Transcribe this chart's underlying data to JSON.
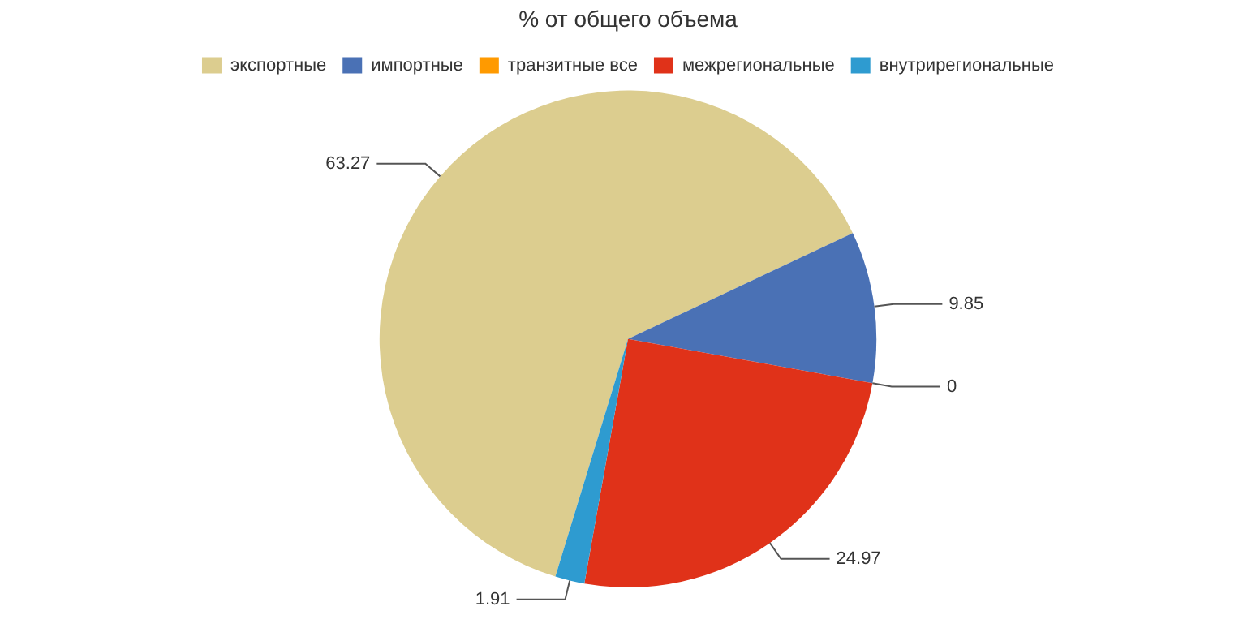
{
  "chart_data": {
    "type": "pie",
    "title": "% от общего объема",
    "categories": [
      "экспортные",
      "импортные",
      "транзитные все",
      "межрегиональные",
      "внутрирегиональные"
    ],
    "values": [
      63.27,
      9.85,
      0,
      24.97,
      1.91
    ],
    "colors": [
      "#dccd8f",
      "#4a71b5",
      "#ff9a00",
      "#e03219",
      "#2e9bd0"
    ],
    "value_labels": [
      "63.27",
      "9.85",
      "0",
      "24.97",
      "1.91"
    ],
    "legend": "top"
  }
}
